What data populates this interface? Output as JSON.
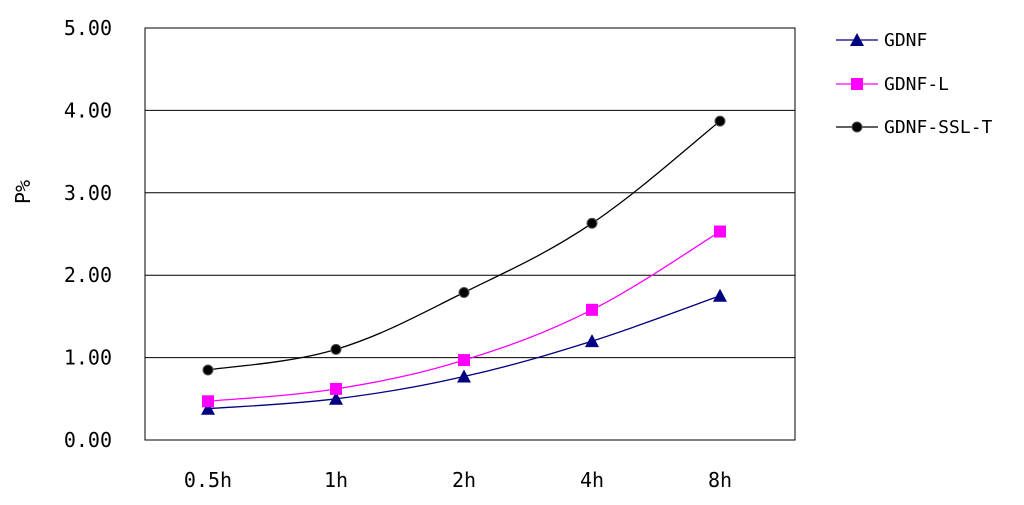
{
  "chart_data": {
    "type": "line",
    "categories": [
      "0.5h",
      "1h",
      "2h",
      "4h",
      "8h"
    ],
    "ylabel": "P%",
    "ylim": [
      0,
      5
    ],
    "yticks": [
      "0.00",
      "1.00",
      "2.00",
      "3.00",
      "4.00",
      "5.00"
    ],
    "grid": true,
    "legend_position": "right",
    "series": [
      {
        "name": "GDNF",
        "values": [
          0.38,
          0.5,
          0.77,
          1.2,
          1.75
        ],
        "color": "#000080",
        "marker": "triangle"
      },
      {
        "name": "GDNF-L",
        "values": [
          0.47,
          0.62,
          0.97,
          1.58,
          2.53
        ],
        "color": "#ff00ff",
        "marker": "square"
      },
      {
        "name": "GDNF-SSL-T",
        "values": [
          0.85,
          1.1,
          1.79,
          2.63,
          3.87
        ],
        "color": "#000000",
        "marker": "circle"
      }
    ]
  }
}
